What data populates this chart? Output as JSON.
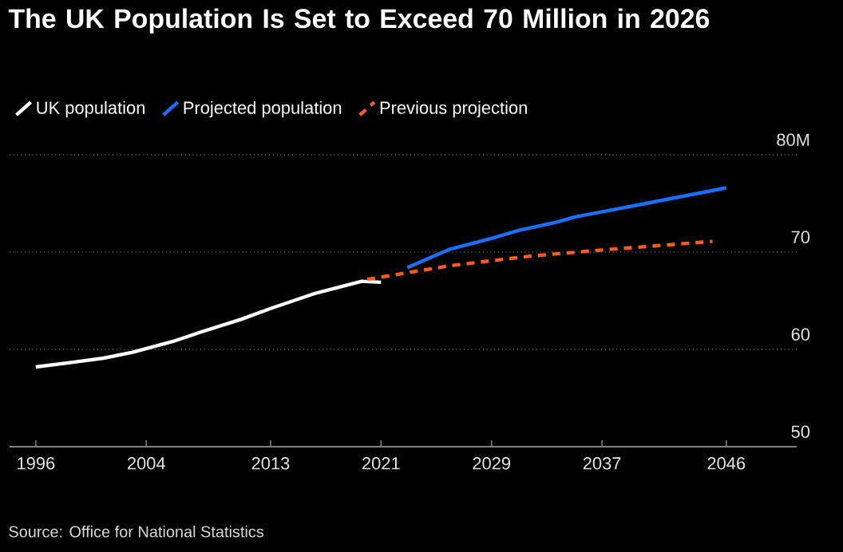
{
  "chart_data": {
    "type": "line",
    "title": "The UK Population Is Set to Exceed 70 Million in 2026",
    "series": [
      {
        "name": "UK population",
        "color": "#ffffff",
        "line_style": "solid",
        "x": [
          1996,
          1998.8,
          2000.9,
          2003,
          2005.9,
          2008,
          2010.9,
          2013,
          2016.1,
          2019.6,
          2021
        ],
        "values": [
          58.2,
          58.7,
          59.1,
          59.7,
          60.8,
          61.8,
          63.1,
          64.2,
          65.7,
          67.0,
          66.9
        ]
      },
      {
        "name": "Projected population",
        "color": "#1a6fff",
        "line_style": "solid",
        "x": [
          2022.9,
          2026,
          2029,
          2030.9,
          2033.8,
          2035,
          2040.2,
          2046
        ],
        "values": [
          68.4,
          70.3,
          71.4,
          72.2,
          73.1,
          73.6,
          75.0,
          76.6
        ]
      },
      {
        "name": "Previous projection",
        "color": "#ff5a1f",
        "line_style": "dashed",
        "x": [
          2020,
          2026,
          2031.9,
          2036.9,
          2045
        ],
        "values": [
          67.2,
          68.6,
          69.6,
          70.2,
          71.1
        ]
      }
    ],
    "xlim": [
      1994.1,
      2051.1
    ],
    "xticks": [
      1996,
      2004,
      2013,
      2021,
      2029,
      2037,
      2046
    ],
    "ylim": [
      50,
      80
    ],
    "yticks": [
      50,
      60,
      70,
      {
        "value": 80,
        "label": "80M"
      }
    ],
    "grid": "y",
    "legend": "top left",
    "annotations": [
      "Source: Office for National Statistics"
    ]
  }
}
